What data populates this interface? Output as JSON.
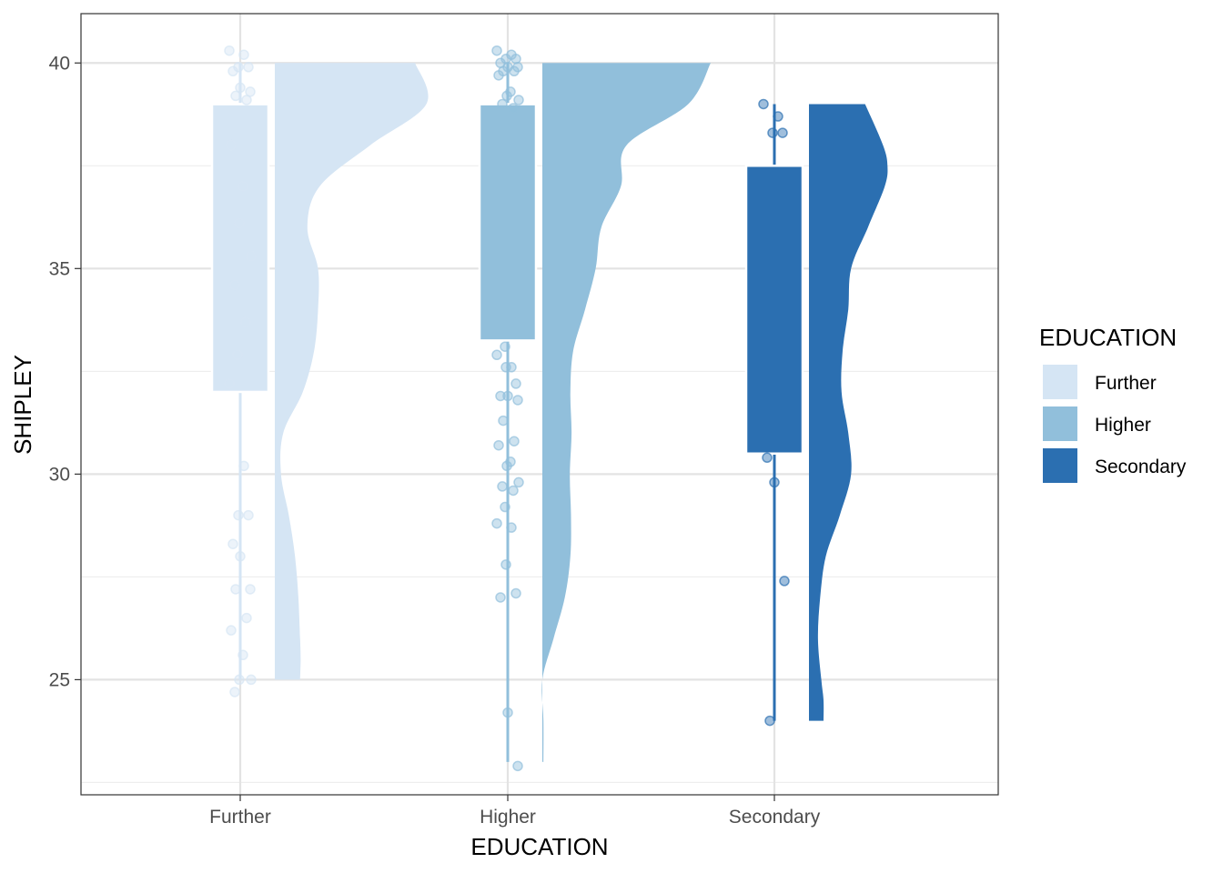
{
  "chart_data": {
    "type": "raincloud",
    "title": "",
    "xlabel": "EDUCATION",
    "ylabel": "SHIPLEY",
    "ylim": [
      22.2,
      41.2
    ],
    "yticks": [
      25,
      30,
      35,
      40
    ],
    "categories": [
      "Further",
      "Higher",
      "Secondary"
    ],
    "legend": {
      "title": "EDUCATION",
      "position": "right",
      "entries": [
        "Further",
        "Higher",
        "Secondary"
      ]
    },
    "colors": {
      "Further": "#D5E5F4",
      "Higher": "#91BFDB",
      "Secondary": "#2B6FB1"
    },
    "grid": true,
    "boxplots": [
      {
        "category": "Further",
        "min": 25.0,
        "q1": 32.0,
        "median": 39.0,
        "q3": 39.0,
        "max": 40.0
      },
      {
        "category": "Higher",
        "min": 23.0,
        "q1": 33.25,
        "median": 39.0,
        "q3": 39.0,
        "max": 40.0
      },
      {
        "category": "Secondary",
        "min": 24.0,
        "q1": 30.5,
        "median": 37.5,
        "q3": 37.5,
        "max": 39.0
      }
    ],
    "densities": [
      {
        "category": "Further",
        "y": [
          25.0,
          25.5,
          26.0,
          27.0,
          28.0,
          29.0,
          30.0,
          31.0,
          32.0,
          33.0,
          34.0,
          35.0,
          36.0,
          37.0,
          38.0,
          39.0,
          40.0
        ],
        "density": [
          0.045,
          0.046,
          0.045,
          0.042,
          0.036,
          0.025,
          0.011,
          0.015,
          0.05,
          0.07,
          0.077,
          0.077,
          0.058,
          0.08,
          0.17,
          0.27,
          0.25
        ]
      },
      {
        "category": "Higher",
        "y": [
          23.0,
          24.0,
          25.0,
          26.0,
          27.0,
          28.0,
          29.0,
          30.0,
          31.0,
          32.0,
          33.0,
          34.0,
          35.0,
          36.0,
          37.0,
          38.0,
          39.0,
          40.0
        ],
        "density": [
          0.002,
          0.002,
          0.0,
          0.02,
          0.04,
          0.05,
          0.051,
          0.049,
          0.052,
          0.05,
          0.055,
          0.076,
          0.095,
          0.105,
          0.14,
          0.15,
          0.26,
          0.3
        ]
      },
      {
        "category": "Secondary",
        "y": [
          24.0,
          24.5,
          25.0,
          26.0,
          27.0,
          28.0,
          29.0,
          30.0,
          31.0,
          32.0,
          33.0,
          34.0,
          35.0,
          36.0,
          37.0,
          37.5,
          38.0,
          39.0
        ],
        "density": [
          0.026,
          0.026,
          0.022,
          0.016,
          0.02,
          0.03,
          0.055,
          0.075,
          0.07,
          0.058,
          0.06,
          0.07,
          0.075,
          0.105,
          0.135,
          0.14,
          0.132,
          0.1
        ]
      }
    ],
    "points": [
      {
        "category": "Further",
        "values": [
          40.3,
          40.2,
          39.9,
          39.9,
          39.8,
          39.4,
          39.3,
          39.2,
          39.1,
          38.0,
          37.0,
          36.1,
          35.3,
          34.6,
          33.7,
          32.9,
          32.2,
          30.2,
          29.0,
          29.0,
          28.3,
          28.0,
          27.2,
          27.2,
          26.5,
          26.2,
          25.6,
          25.0,
          25.0,
          24.7
        ]
      },
      {
        "category": "Higher",
        "values": [
          40.3,
          40.2,
          40.1,
          40.1,
          40.0,
          39.9,
          39.9,
          39.8,
          39.8,
          39.7,
          39.3,
          39.2,
          39.1,
          39.0,
          38.9,
          33.1,
          32.9,
          32.6,
          32.6,
          32.2,
          31.9,
          31.9,
          31.8,
          31.3,
          30.8,
          30.7,
          30.3,
          30.2,
          29.8,
          29.7,
          29.6,
          29.2,
          28.8,
          28.7,
          27.8,
          27.1,
          27.0,
          24.2,
          22.9
        ]
      },
      {
        "category": "Secondary",
        "values": [
          39.0,
          38.7,
          38.3,
          38.3,
          30.4,
          29.8,
          27.4,
          24.0
        ]
      }
    ]
  }
}
